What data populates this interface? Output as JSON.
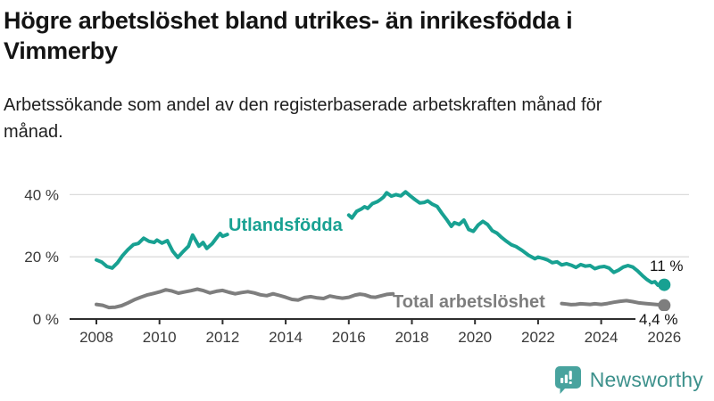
{
  "header": {
    "title": "Högre arbetslöshet bland utrikes- än inrikesfödda i Vimmerby",
    "subtitle": "Arbetssökande som andel av den registerbaserade arbetskraften månad för månad."
  },
  "chart_data": {
    "type": "line",
    "title": "Högre arbetslöshet bland utrikes- än inrikesfödda i Vimmerby",
    "subtitle": "Arbetssökande som andel av den registerbaserade arbetskraften månad för månad.",
    "unit": "%",
    "x_axis": {
      "tick_labels": [
        "2008",
        "2010",
        "2012",
        "2014",
        "2016",
        "2018",
        "2020",
        "2022",
        "2024",
        "2026"
      ],
      "tick_values": [
        2008,
        2010,
        2012,
        2014,
        2016,
        2018,
        2020,
        2022,
        2024,
        2026
      ],
      "range": [
        2007.15,
        2026.8
      ]
    },
    "y_axis": {
      "tick_labels": [
        "0 %",
        "20 %",
        "40 %"
      ],
      "tick_values": [
        0,
        20,
        40
      ],
      "range": [
        0,
        44
      ],
      "grid": "horizontal-only"
    },
    "legend_position": "inline-labels-on-lines",
    "series": [
      {
        "name": "Utlandsfödda",
        "color": "#18a192",
        "end_label": "11 %",
        "end_point": {
          "x": 2026.0,
          "y": 11
        },
        "label_gap_note": "line interrupted by inline name label between 2012.2 and 2016.0",
        "segments": [
          [
            [
              2008.0,
              19.0
            ],
            [
              2008.17,
              18.3
            ],
            [
              2008.33,
              16.9
            ],
            [
              2008.5,
              16.4
            ],
            [
              2008.67,
              18.1
            ],
            [
              2008.83,
              20.4
            ],
            [
              2009.0,
              22.3
            ],
            [
              2009.17,
              23.9
            ],
            [
              2009.33,
              24.3
            ],
            [
              2009.5,
              26.0
            ],
            [
              2009.67,
              25.0
            ],
            [
              2009.83,
              24.6
            ],
            [
              2009.92,
              25.4
            ],
            [
              2010.08,
              24.4
            ],
            [
              2010.25,
              25.2
            ],
            [
              2010.42,
              21.8
            ],
            [
              2010.58,
              19.8
            ],
            [
              2010.75,
              21.7
            ],
            [
              2010.92,
              23.4
            ],
            [
              2011.05,
              27.0
            ],
            [
              2011.25,
              23.4
            ],
            [
              2011.38,
              24.6
            ],
            [
              2011.5,
              22.7
            ],
            [
              2011.67,
              24.2
            ],
            [
              2011.83,
              26.4
            ],
            [
              2011.92,
              27.5
            ],
            [
              2012.0,
              26.6
            ],
            [
              2012.15,
              27.2
            ]
          ],
          [
            [
              2016.0,
              33.4
            ],
            [
              2016.1,
              32.5
            ],
            [
              2016.25,
              34.6
            ],
            [
              2016.4,
              35.4
            ],
            [
              2016.5,
              36.1
            ],
            [
              2016.6,
              35.6
            ],
            [
              2016.75,
              37.1
            ],
            [
              2016.9,
              37.7
            ],
            [
              2017.0,
              38.4
            ],
            [
              2017.1,
              39.2
            ],
            [
              2017.2,
              40.6
            ],
            [
              2017.35,
              39.5
            ],
            [
              2017.5,
              40.0
            ],
            [
              2017.65,
              39.6
            ],
            [
              2017.8,
              40.9
            ],
            [
              2017.95,
              39.6
            ],
            [
              2018.1,
              38.4
            ],
            [
              2018.25,
              37.3
            ],
            [
              2018.4,
              37.5
            ],
            [
              2018.5,
              38.0
            ],
            [
              2018.65,
              36.9
            ],
            [
              2018.8,
              36.2
            ],
            [
              2018.95,
              34.0
            ],
            [
              2019.1,
              32.0
            ],
            [
              2019.25,
              29.8
            ],
            [
              2019.35,
              31.0
            ],
            [
              2019.5,
              30.4
            ],
            [
              2019.65,
              31.8
            ],
            [
              2019.8,
              28.8
            ],
            [
              2019.95,
              28.2
            ],
            [
              2020.1,
              30.2
            ],
            [
              2020.25,
              31.4
            ],
            [
              2020.4,
              30.4
            ],
            [
              2020.55,
              28.4
            ],
            [
              2020.7,
              27.6
            ],
            [
              2020.85,
              26.2
            ],
            [
              2021.0,
              25.0
            ],
            [
              2021.15,
              23.9
            ],
            [
              2021.3,
              23.3
            ],
            [
              2021.5,
              22.0
            ],
            [
              2021.7,
              20.5
            ],
            [
              2021.9,
              19.4
            ],
            [
              2022.0,
              19.9
            ],
            [
              2022.15,
              19.5
            ],
            [
              2022.3,
              19.0
            ],
            [
              2022.45,
              18.1
            ],
            [
              2022.6,
              18.4
            ],
            [
              2022.75,
              17.4
            ],
            [
              2022.9,
              17.8
            ],
            [
              2023.05,
              17.3
            ],
            [
              2023.2,
              16.6
            ],
            [
              2023.35,
              17.5
            ],
            [
              2023.5,
              17.0
            ],
            [
              2023.65,
              17.2
            ],
            [
              2023.8,
              16.2
            ],
            [
              2023.95,
              16.7
            ],
            [
              2024.1,
              16.9
            ],
            [
              2024.25,
              16.4
            ],
            [
              2024.4,
              15.0
            ],
            [
              2024.55,
              15.7
            ],
            [
              2024.7,
              16.7
            ],
            [
              2024.85,
              17.2
            ],
            [
              2025.0,
              16.7
            ],
            [
              2025.15,
              15.5
            ],
            [
              2025.3,
              14.0
            ],
            [
              2025.45,
              12.7
            ],
            [
              2025.6,
              11.7
            ],
            [
              2025.7,
              12.0
            ],
            [
              2025.8,
              10.9
            ],
            [
              2025.9,
              11.3
            ],
            [
              2026.0,
              11.0
            ]
          ]
        ]
      },
      {
        "name": "Total arbetslöshet",
        "color": "#7e7e7e",
        "end_label": "4,4 %",
        "end_point": {
          "x": 2026.0,
          "y": 4.4
        },
        "label_gap_note": "line interrupted by inline name label between 2017.4 and 2022.75",
        "segments": [
          [
            [
              2008.0,
              4.7
            ],
            [
              2008.2,
              4.4
            ],
            [
              2008.4,
              3.7
            ],
            [
              2008.6,
              3.8
            ],
            [
              2008.8,
              4.3
            ],
            [
              2009.0,
              5.2
            ],
            [
              2009.2,
              6.2
            ],
            [
              2009.4,
              7.0
            ],
            [
              2009.6,
              7.7
            ],
            [
              2009.8,
              8.2
            ],
            [
              2010.0,
              8.7
            ],
            [
              2010.2,
              9.4
            ],
            [
              2010.4,
              9.0
            ],
            [
              2010.6,
              8.3
            ],
            [
              2010.8,
              8.7
            ],
            [
              2011.0,
              9.1
            ],
            [
              2011.2,
              9.6
            ],
            [
              2011.4,
              9.1
            ],
            [
              2011.6,
              8.4
            ],
            [
              2011.8,
              8.9
            ],
            [
              2012.0,
              9.2
            ],
            [
              2012.2,
              8.6
            ],
            [
              2012.4,
              8.1
            ],
            [
              2012.6,
              8.5
            ],
            [
              2012.8,
              8.8
            ],
            [
              2013.0,
              8.4
            ],
            [
              2013.2,
              7.8
            ],
            [
              2013.4,
              7.5
            ],
            [
              2013.6,
              8.1
            ],
            [
              2013.8,
              7.6
            ],
            [
              2014.0,
              7.0
            ],
            [
              2014.2,
              6.3
            ],
            [
              2014.4,
              6.1
            ],
            [
              2014.6,
              6.9
            ],
            [
              2014.8,
              7.2
            ],
            [
              2015.0,
              6.8
            ],
            [
              2015.2,
              6.6
            ],
            [
              2015.4,
              7.4
            ],
            [
              2015.6,
              7.0
            ],
            [
              2015.8,
              6.7
            ],
            [
              2016.0,
              7.0
            ],
            [
              2016.2,
              7.7
            ],
            [
              2016.35,
              8.0
            ],
            [
              2016.5,
              7.8
            ],
            [
              2016.7,
              7.1
            ],
            [
              2016.85,
              7.0
            ],
            [
              2017.0,
              7.4
            ],
            [
              2017.2,
              7.9
            ],
            [
              2017.4,
              8.1
            ]
          ],
          [
            [
              2022.75,
              5.0
            ],
            [
              2022.9,
              4.8
            ],
            [
              2023.05,
              4.6
            ],
            [
              2023.2,
              4.7
            ],
            [
              2023.35,
              4.9
            ],
            [
              2023.5,
              4.8
            ],
            [
              2023.65,
              4.7
            ],
            [
              2023.8,
              4.9
            ],
            [
              2024.0,
              4.7
            ],
            [
              2024.2,
              5.0
            ],
            [
              2024.4,
              5.4
            ],
            [
              2024.6,
              5.7
            ],
            [
              2024.8,
              5.9
            ],
            [
              2025.0,
              5.6
            ],
            [
              2025.2,
              5.2
            ],
            [
              2025.4,
              5.0
            ],
            [
              2025.6,
              4.8
            ],
            [
              2025.8,
              4.6
            ],
            [
              2026.0,
              4.4
            ]
          ]
        ]
      }
    ],
    "colors": {
      "grid": "#dcdcdc",
      "axis": "#2e2e2e",
      "tick_label": "#3a3a3a",
      "end_label_text": "#111111"
    }
  },
  "footer": {
    "brand": "Newsworthy",
    "logo_icon": "bar-chart-speech-bubble-icon",
    "brand_text_color": "#3d918c",
    "brand_logo_color": "#48a39e"
  }
}
